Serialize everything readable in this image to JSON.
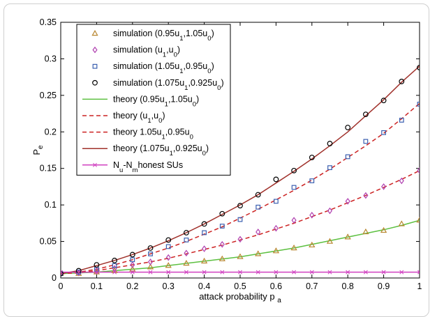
{
  "chart_data": {
    "type": "line",
    "xlabel": "attack probability p",
    "xlabel_sub": "a",
    "ylabel": "P",
    "ylabel_sub": "e",
    "xlim": [
      0,
      1
    ],
    "ylim": [
      0,
      0.35
    ],
    "x_ticks": [
      "0",
      "0.1",
      "0.2",
      "0.3",
      "0.4",
      "0.5",
      "0.6",
      "0.7",
      "0.8",
      "0.9",
      "1"
    ],
    "y_ticks": [
      "0",
      "0.05",
      "0.1",
      "0.15",
      "0.2",
      "0.25",
      "0.3",
      "0.35"
    ],
    "grid": false,
    "legend_position": "top-left",
    "x": [
      0,
      0.05,
      0.1,
      0.15,
      0.2,
      0.25,
      0.3,
      0.35,
      0.4,
      0.45,
      0.5,
      0.55,
      0.6,
      0.65,
      0.7,
      0.75,
      0.8,
      0.85,
      0.9,
      0.95,
      1
    ],
    "series": [
      {
        "name": "simulation (0.95u1,1.05u0)",
        "legend": [
          {
            "t": "simulation (0.95u"
          },
          {
            "t": "1",
            "sub": true
          },
          {
            "t": ",1.05u"
          },
          {
            "t": "0",
            "sub": true
          },
          {
            "t": ")"
          }
        ],
        "kind": "marker",
        "marker": "triangle",
        "color": "#b8862f",
        "values": [
          0.006,
          0.006,
          0.008,
          0.01,
          0.012,
          0.015,
          0.017,
          0.02,
          0.023,
          0.026,
          0.029,
          0.033,
          0.037,
          0.041,
          0.045,
          0.05,
          0.056,
          0.063,
          0.065,
          0.074,
          0.079
        ]
      },
      {
        "name": "simulation (u1,u0)",
        "legend": [
          {
            "t": "simulation (u"
          },
          {
            "t": "1",
            "sub": true
          },
          {
            "t": ",u"
          },
          {
            "t": "0",
            "sub": true
          },
          {
            "t": ")"
          }
        ],
        "kind": "marker",
        "marker": "diamond",
        "color": "#b040b0",
        "values": [
          0.006,
          0.007,
          0.01,
          0.013,
          0.018,
          0.022,
          0.028,
          0.034,
          0.04,
          0.046,
          0.053,
          0.063,
          0.068,
          0.079,
          0.086,
          0.092,
          0.105,
          0.113,
          0.125,
          0.133,
          0.147
        ]
      },
      {
        "name": "simulation (1.05u1,0.95u0)",
        "legend": [
          {
            "t": "simulation (1.05u"
          },
          {
            "t": "1",
            "sub": true
          },
          {
            "t": ",0.95u"
          },
          {
            "t": "0",
            "sub": true
          },
          {
            "t": ")"
          }
        ],
        "kind": "marker",
        "marker": "square",
        "color": "#3a5fb0",
        "values": [
          0.006,
          0.008,
          0.012,
          0.017,
          0.025,
          0.033,
          0.043,
          0.052,
          0.062,
          0.071,
          0.08,
          0.097,
          0.105,
          0.124,
          0.133,
          0.151,
          0.166,
          0.187,
          0.199,
          0.216,
          0.238
        ]
      },
      {
        "name": "simulation (1.075u1,0.925u0)",
        "legend": [
          {
            "t": "simulation (1.075u"
          },
          {
            "t": "1",
            "sub": true
          },
          {
            "t": ",0.925u"
          },
          {
            "t": "0",
            "sub": true
          },
          {
            "t": ")"
          }
        ],
        "kind": "marker",
        "marker": "circle",
        "color": "#000000",
        "values": [
          0.006,
          0.01,
          0.018,
          0.024,
          0.032,
          0.041,
          0.052,
          0.062,
          0.074,
          0.088,
          0.099,
          0.114,
          0.135,
          0.147,
          0.165,
          0.184,
          0.206,
          0.224,
          0.243,
          0.269,
          0.288
        ]
      },
      {
        "name": "theory (0.95u1,1.05u0)",
        "legend": [
          {
            "t": "theory (0.95u"
          },
          {
            "t": "1",
            "sub": true
          },
          {
            "t": ",1.05u"
          },
          {
            "t": "0",
            "sub": true
          },
          {
            "t": ")"
          }
        ],
        "kind": "line",
        "dash": "",
        "color": "#5cc040",
        "values": [
          0.006,
          0.007,
          0.008,
          0.01,
          0.012,
          0.014,
          0.017,
          0.02,
          0.023,
          0.026,
          0.029,
          0.033,
          0.037,
          0.041,
          0.046,
          0.051,
          0.056,
          0.061,
          0.066,
          0.072,
          0.079
        ]
      },
      {
        "name": "theory (u1,u0)",
        "legend": [
          {
            "t": "theory (u"
          },
          {
            "t": "1",
            "sub": true
          },
          {
            "t": ",u"
          },
          {
            "t": "0",
            "sub": true
          },
          {
            "t": ")"
          }
        ],
        "kind": "line",
        "dash": "6,4",
        "color": "#cc2222",
        "values": [
          0.006,
          0.007,
          0.01,
          0.014,
          0.018,
          0.022,
          0.027,
          0.033,
          0.039,
          0.045,
          0.052,
          0.059,
          0.067,
          0.075,
          0.084,
          0.093,
          0.103,
          0.113,
          0.124,
          0.135,
          0.147
        ]
      },
      {
        "name": "theory 1.05u1,0.95u0",
        "legend": [
          {
            "t": "theory 1.05u"
          },
          {
            "t": "1",
            "sub": true
          },
          {
            "t": ",0.95u"
          },
          {
            "t": "0",
            "sub": true
          }
        ],
        "kind": "line",
        "dash": "6,4",
        "color": "#cc2222",
        "values": [
          0.006,
          0.008,
          0.012,
          0.018,
          0.025,
          0.033,
          0.041,
          0.05,
          0.06,
          0.07,
          0.082,
          0.094,
          0.107,
          0.12,
          0.134,
          0.149,
          0.165,
          0.181,
          0.198,
          0.218,
          0.239
        ]
      },
      {
        "name": "theory (1.075u1,0.925u0)",
        "legend": [
          {
            "t": "theory (1.075u"
          },
          {
            "t": "1",
            "sub": true
          },
          {
            "t": ",0.925u"
          },
          {
            "t": "0",
            "sub": true
          },
          {
            "t": ")"
          }
        ],
        "kind": "line",
        "dash": "",
        "color": "#a0302a",
        "values": [
          0.006,
          0.01,
          0.017,
          0.024,
          0.032,
          0.041,
          0.051,
          0.062,
          0.074,
          0.087,
          0.1,
          0.114,
          0.13,
          0.146,
          0.163,
          0.181,
          0.2,
          0.222,
          0.244,
          0.268,
          0.29
        ]
      },
      {
        "name": "Nu-Nm honest SUs",
        "legend": [
          {
            "t": "N"
          },
          {
            "t": "u",
            "sub": true
          },
          {
            "t": "-N"
          },
          {
            "t": "m",
            "sub": true
          },
          {
            "t": "honest SUs"
          }
        ],
        "kind": "line_marker",
        "dash": "",
        "marker": "x",
        "color": "#d040c0",
        "values": [
          0.008,
          0.008,
          0.008,
          0.008,
          0.008,
          0.008,
          0.008,
          0.008,
          0.008,
          0.008,
          0.008,
          0.008,
          0.008,
          0.008,
          0.008,
          0.008,
          0.008,
          0.008,
          0.008,
          0.008,
          0.008
        ]
      }
    ]
  }
}
